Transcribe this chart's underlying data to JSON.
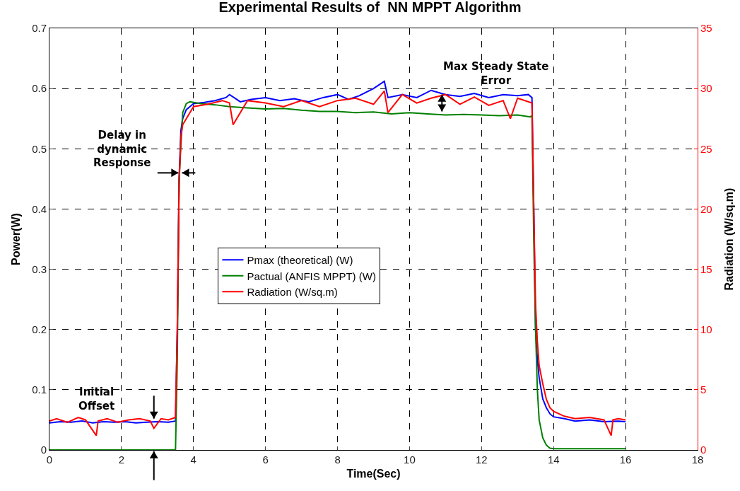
{
  "chart_data": {
    "type": "line",
    "title": "Experimental Results of  NN MPPT Algorithm",
    "xlabel": "Time(Sec)",
    "ylabel": "Power(W)",
    "y2label": "Radiation (W/sq.m)",
    "series": [
      {
        "name": "Pmax (theoretical) (W)",
        "color": "#0000ff",
        "x": [
          0,
          0.3,
          0.6,
          0.9,
          1.2,
          1.5,
          1.8,
          2.1,
          2.4,
          2.7,
          3.0,
          3.3,
          3.5,
          3.55,
          3.6,
          3.65,
          3.7,
          3.8,
          3.9,
          4.0,
          4.3,
          4.6,
          4.9,
          5.0,
          5.3,
          5.6,
          6.0,
          6.4,
          6.8,
          7.2,
          7.6,
          8.0,
          8.3,
          8.6,
          9.0,
          9.3,
          9.4,
          9.8,
          10.2,
          10.6,
          11.0,
          11.4,
          11.8,
          12.2,
          12.6,
          13.0,
          13.3,
          13.4,
          13.45,
          13.5,
          13.55,
          13.6,
          13.7,
          13.8,
          13.9,
          14.0,
          14.3,
          14.6,
          15.0,
          15.4,
          15.8,
          16.0
        ],
        "values": [
          0.045,
          0.047,
          0.046,
          0.048,
          0.045,
          0.047,
          0.046,
          0.047,
          0.045,
          0.046,
          0.047,
          0.046,
          0.048,
          0.2,
          0.45,
          0.53,
          0.55,
          0.565,
          0.57,
          0.575,
          0.577,
          0.58,
          0.585,
          0.59,
          0.578,
          0.582,
          0.585,
          0.58,
          0.583,
          0.578,
          0.585,
          0.59,
          0.582,
          0.588,
          0.6,
          0.612,
          0.585,
          0.59,
          0.585,
          0.597,
          0.59,
          0.587,
          0.592,
          0.585,
          0.59,
          0.588,
          0.59,
          0.585,
          0.4,
          0.2,
          0.15,
          0.12,
          0.085,
          0.07,
          0.06,
          0.055,
          0.052,
          0.048,
          0.05,
          0.047,
          0.048,
          0.047
        ]
      },
      {
        "name": "Pactual (ANFIS MPPT) (W)",
        "color": "#008000",
        "x": [
          0,
          3.5,
          3.55,
          3.6,
          3.7,
          3.8,
          3.9,
          4.2,
          4.6,
          5.0,
          5.5,
          6.0,
          6.5,
          7.0,
          7.5,
          8.0,
          8.5,
          9.0,
          9.5,
          10.0,
          10.5,
          11.0,
          11.5,
          12.0,
          12.5,
          13.0,
          13.35,
          13.4,
          13.45,
          13.5,
          13.55,
          13.6,
          13.7,
          13.8,
          13.9,
          14.0,
          16.0
        ],
        "values": [
          0,
          0,
          0.15,
          0.45,
          0.56,
          0.575,
          0.578,
          0.575,
          0.573,
          0.57,
          0.568,
          0.566,
          0.567,
          0.564,
          0.562,
          0.562,
          0.56,
          0.561,
          0.558,
          0.56,
          0.558,
          0.556,
          0.557,
          0.556,
          0.555,
          0.556,
          0.553,
          0.555,
          0.35,
          0.2,
          0.1,
          0.05,
          0.02,
          0.008,
          0.003,
          0.002,
          0.002
        ]
      },
      {
        "name": "Radiation (W/sq.m)",
        "color": "#ff0000",
        "axis": "y2",
        "x": [
          0,
          0.2,
          0.5,
          0.8,
          1.0,
          1.3,
          1.35,
          1.6,
          1.9,
          2.2,
          2.5,
          2.8,
          2.9,
          3.1,
          3.3,
          3.5,
          3.55,
          3.6,
          3.65,
          3.7,
          3.8,
          3.9,
          4.0,
          4.4,
          4.8,
          5.0,
          5.1,
          5.5,
          6.0,
          6.5,
          7.0,
          7.5,
          8.0,
          8.5,
          9.0,
          9.3,
          9.4,
          9.8,
          10.2,
          10.6,
          11.0,
          11.4,
          11.8,
          12.2,
          12.6,
          12.8,
          13.0,
          13.4,
          13.45,
          13.5,
          13.55,
          13.6,
          13.7,
          13.8,
          13.9,
          14.0,
          14.3,
          14.6,
          15.0,
          15.4,
          15.6,
          15.65,
          15.8,
          16.0
        ],
        "values": [
          2.4,
          2.6,
          2.3,
          2.7,
          2.5,
          1.2,
          2.4,
          2.6,
          2.3,
          2.5,
          2.6,
          2.4,
          1.8,
          2.6,
          2.5,
          2.7,
          10,
          22,
          26,
          27,
          27.5,
          28,
          28.5,
          28.7,
          29,
          28.8,
          27,
          29,
          28.8,
          28.5,
          29,
          28.5,
          29,
          29.2,
          28.7,
          29.8,
          28,
          29.5,
          28.8,
          29.2,
          29.5,
          28.7,
          29.3,
          28.6,
          29,
          27.5,
          29.2,
          28.8,
          20,
          12,
          9,
          7,
          5.5,
          4.2,
          3.5,
          3.2,
          2.8,
          2.6,
          2.7,
          2.5,
          1.2,
          2.5,
          2.6,
          2.5
        ]
      }
    ],
    "xlim": [
      0,
      18
    ],
    "xticks": [
      0,
      2,
      4,
      6,
      8,
      10,
      12,
      14,
      16,
      18
    ],
    "ylim": [
      0,
      0.7
    ],
    "yticks": [
      0,
      0.1,
      0.2,
      0.3,
      0.4,
      0.5,
      0.6,
      0.7
    ],
    "y2lim": [
      0,
      35
    ],
    "y2ticks": [
      0,
      5,
      10,
      15,
      20,
      25,
      30,
      35
    ],
    "annotations": [
      "Max Steady State\nError",
      {
        "text": "Delay in\ndynamic\nResponse",
        "x": 3.62,
        "y": 0.46
      },
      "Initial\nOffset"
    ],
    "grid": true,
    "legend": "center",
    "marker": "none",
    "line_style": "solid"
  }
}
